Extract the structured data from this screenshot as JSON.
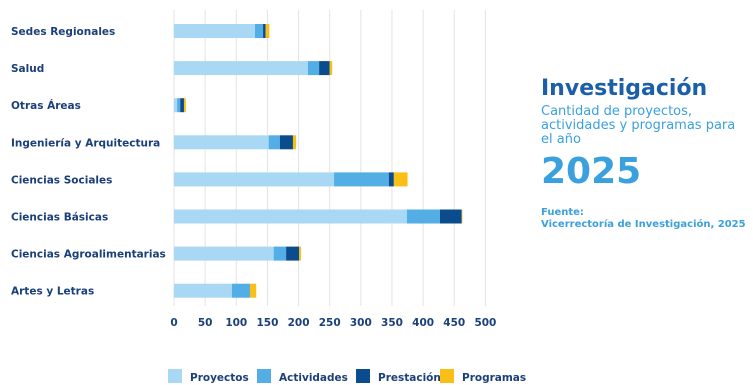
{
  "colors": {
    "proyectos": "#a8d8f3",
    "actividades": "#52aee4",
    "prestacion": "#0b4c8c",
    "programas": "#f9bf16",
    "text_dark": "#1b3f7a",
    "title": "#1b5fa8",
    "accent": "#3aa0de",
    "gridline": "#e3e3e3"
  },
  "side": {
    "title": "Investigación",
    "subtitle": "Cantidad de proyectos, actividades y programas para el año",
    "year": "2025",
    "source_label": "Fuente:",
    "source_text": "Vicerrectoría de Investigación, 2025"
  },
  "chart_data": {
    "type": "bar",
    "orientation": "horizontal",
    "stacked": true,
    "categories": [
      "Sedes Regionales",
      "Salud",
      "Otras Áreas",
      "Ingeniería y Arquitectura",
      "Ciencias Sociales",
      "Ciencias Básicas",
      "Ciencias Agroalimentarias",
      "Artes y Letras"
    ],
    "series": [
      {
        "name": "Proyectos",
        "values": [
          130,
          215,
          5,
          152,
          257,
          374,
          160,
          93
        ]
      },
      {
        "name": "Actividades",
        "values": [
          13,
          18,
          5,
          18,
          88,
          53,
          20,
          29
        ]
      },
      {
        "name": "Prestación",
        "values": [
          4,
          17,
          6,
          21,
          8,
          35,
          21,
          0
        ]
      },
      {
        "name": "Programas",
        "values": [
          6,
          4,
          3,
          5,
          22,
          1,
          3,
          10
        ]
      }
    ],
    "xlim": [
      0,
      500
    ],
    "xticks": [
      0,
      50,
      100,
      150,
      200,
      250,
      300,
      350,
      400,
      450,
      500
    ],
    "grid": true,
    "legend_position": "bottom"
  }
}
